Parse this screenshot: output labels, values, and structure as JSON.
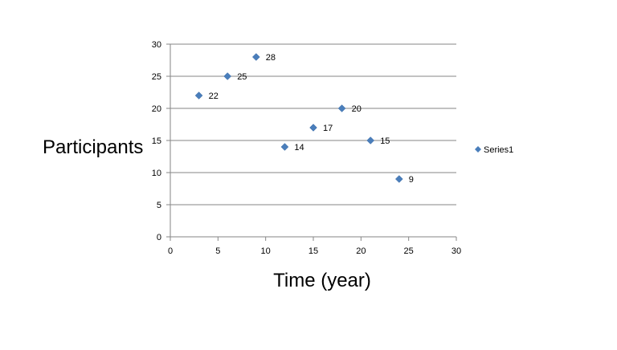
{
  "chart_data": {
    "type": "scatter",
    "xlabel": "Time (year)",
    "ylabel": "Participants",
    "xlim": [
      0,
      30
    ],
    "ylim": [
      0,
      30
    ],
    "xticks": [
      "0",
      "5",
      "10",
      "15",
      "20",
      "25",
      "30"
    ],
    "yticks": [
      "0",
      "5",
      "10",
      "15",
      "20",
      "25",
      "30"
    ],
    "grid": true,
    "legend": "right",
    "series": [
      {
        "name": "Series1",
        "color": "#4a7ebb",
        "marker": "diamond",
        "x": [
          3,
          6,
          9,
          12,
          15,
          18,
          21,
          24
        ],
        "y": [
          22,
          25,
          28,
          14,
          17,
          20,
          15,
          9
        ],
        "labels": [
          "22",
          "25",
          "28",
          "14",
          "17",
          "20",
          "15",
          "9"
        ]
      }
    ]
  }
}
